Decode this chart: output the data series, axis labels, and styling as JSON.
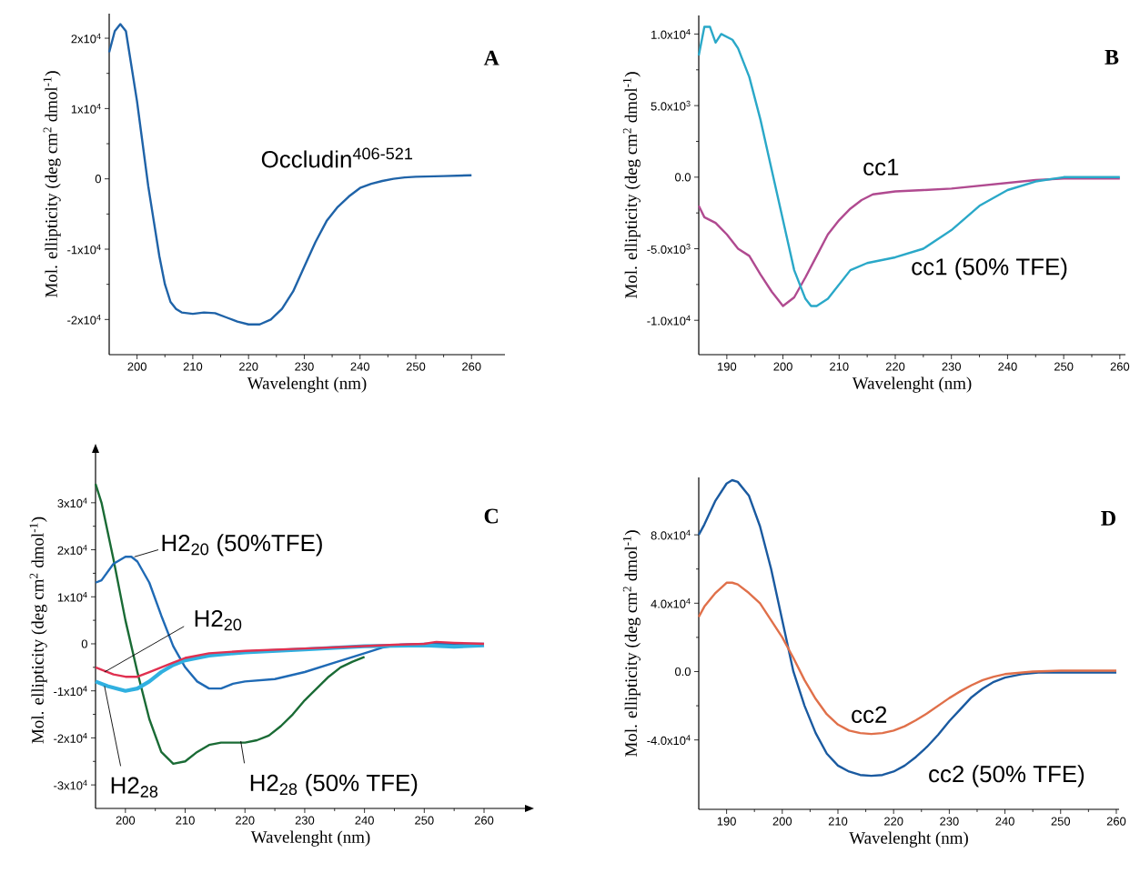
{
  "chart_data": [
    {
      "type": "line",
      "xlabel": "Wavelenght (nm)",
      "ylabel": "Mol. ellipticity (deg cm$^{2}$ dmol$^{-1}$)",
      "annotations": [
        "A"
      ],
      "xlim": [
        195,
        266
      ],
      "ylim": [
        -25000,
        23500
      ],
      "xticks": [
        200,
        210,
        220,
        230,
        240,
        250,
        260
      ],
      "yticks": [
        {
          "value": -20000,
          "label": "-2x10$^{4}$"
        },
        {
          "value": -10000,
          "label": "-1x10$^{4}$"
        },
        0,
        {
          "value": 10000,
          "label": "1x10$^{4}$"
        },
        {
          "value": 20000,
          "label": "2x10$^{4}$"
        }
      ],
      "series": [
        {
          "name": "Occludin$^{406-521}$",
          "color": "#1f63a8",
          "x": [
            195,
            196,
            197,
            198,
            199,
            200,
            201,
            202,
            203,
            204,
            205,
            206,
            207,
            208,
            210,
            212,
            214,
            216,
            218,
            220,
            222,
            224,
            226,
            228,
            230,
            232,
            234,
            236,
            238,
            240,
            242,
            244,
            246,
            248,
            250,
            255,
            260
          ],
          "values": [
            18000,
            21000,
            22000,
            21000,
            16000,
            11000,
            5000,
            -1000,
            -6000,
            -11000,
            -15000,
            -17500,
            -18500,
            -19000,
            -19200,
            -19000,
            -19100,
            -19700,
            -20300,
            -20700,
            -20700,
            -20000,
            -18500,
            -16000,
            -12500,
            -9000,
            -6000,
            -4000,
            -2500,
            -1300,
            -700,
            -300,
            0,
            200,
            300,
            400,
            500
          ]
        }
      ]
    },
    {
      "type": "line",
      "xlabel": "Wavelenght (nm)",
      "ylabel": "Mol. ellipticity (deg cm$^{2}$ dmol$^{-1}$)",
      "annotations": [
        "B"
      ],
      "xlim": [
        185,
        261
      ],
      "ylim": [
        -12400,
        11300
      ],
      "xticks": [
        190,
        200,
        210,
        220,
        230,
        240,
        250,
        260
      ],
      "yticks": [
        {
          "value": -10000,
          "label": "-1.0x10$^{4}$"
        },
        {
          "value": -5000,
          "label": "-5.0x10$^{3}$"
        },
        {
          "value": 0,
          "label": "0.0"
        },
        {
          "value": 5000,
          "label": "5.0x10$^{3}$"
        },
        {
          "value": 10000,
          "label": "1.0x10$^{4}$"
        }
      ],
      "series": [
        {
          "name": "cc1",
          "color": "#b04a90",
          "x": [
            185,
            186,
            188,
            190,
            192,
            194,
            196,
            198,
            200,
            202,
            204,
            206,
            208,
            210,
            212,
            214,
            216,
            220,
            225,
            230,
            235,
            240,
            245,
            250,
            255,
            260
          ],
          "values": [
            -2000,
            -2800,
            -3200,
            -4000,
            -5000,
            -5500,
            -6800,
            -8000,
            -9000,
            -8400,
            -7000,
            -5500,
            -4000,
            -3000,
            -2200,
            -1600,
            -1200,
            -1000,
            -900,
            -800,
            -600,
            -400,
            -200,
            -100,
            -100,
            -100
          ]
        },
        {
          "name": "cc1 (50% TFE)",
          "color": "#2aa8c8",
          "x": [
            185,
            186,
            187,
            188,
            189,
            190,
            191,
            192,
            194,
            196,
            198,
            200,
            202,
            204,
            205,
            206,
            208,
            210,
            212,
            215,
            220,
            225,
            230,
            235,
            240,
            245,
            250,
            255,
            260
          ],
          "values": [
            8500,
            10500,
            10500,
            9400,
            10000,
            9800,
            9600,
            9000,
            7000,
            4000,
            500,
            -3000,
            -6500,
            -8500,
            -9000,
            -9000,
            -8500,
            -7500,
            -6500,
            -6000,
            -5600,
            -5000,
            -3700,
            -2000,
            -900,
            -300,
            0,
            0,
            0
          ]
        }
      ]
    },
    {
      "type": "line",
      "xlabel": "Wavelenght (nm)",
      "ylabel": "Mol. ellipticity (deg cm$^{2}$ dmol$^{-1}$)",
      "annotations": [
        "C"
      ],
      "xlim": [
        195,
        267
      ],
      "ylim": [
        -35000,
        40800
      ],
      "xticks": [
        200,
        210,
        220,
        230,
        240,
        250,
        260
      ],
      "yticks": [
        {
          "value": -30000,
          "label": "-3x10$^{4}$"
        },
        {
          "value": -20000,
          "label": "-2x10$^{4}$"
        },
        {
          "value": -10000,
          "label": "-1x10$^{4}$"
        },
        0,
        {
          "value": 10000,
          "label": "1x10$^{4}$"
        },
        {
          "value": 20000,
          "label": "2x10$^{4}$"
        },
        {
          "value": 30000,
          "label": "3x10$^{4}$"
        }
      ],
      "series": [
        {
          "name": "H2$_{28}$ (50% TFE)",
          "color": "#1a6b35",
          "x": [
            195,
            196,
            198,
            200,
            202,
            204,
            206,
            208,
            210,
            212,
            214,
            216,
            220,
            222,
            224,
            226,
            228,
            230,
            232,
            234,
            236,
            238,
            240
          ],
          "values": [
            34000,
            30000,
            18000,
            5000,
            -6000,
            -16000,
            -23000,
            -25500,
            -25000,
            -23000,
            -21500,
            -21000,
            -21000,
            -20500,
            -19500,
            -17500,
            -15000,
            -12000,
            -9500,
            -7000,
            -5000,
            -3800,
            -2800
          ]
        },
        {
          "name": "H2$_{20}$ (50%TFE)",
          "color": "#1f6ab5",
          "x": [
            195,
            196,
            198,
            200,
            201,
            202,
            204,
            206,
            208,
            210,
            212,
            214,
            216,
            218,
            220,
            225,
            230,
            235,
            240,
            243,
            246,
            250,
            255,
            260
          ],
          "values": [
            13000,
            13500,
            17000,
            18500,
            18500,
            17500,
            13000,
            6000,
            -500,
            -5000,
            -8000,
            -9500,
            -9500,
            -8500,
            -8000,
            -7500,
            -6000,
            -4000,
            -2000,
            -800,
            -200,
            0,
            0,
            0
          ]
        },
        {
          "name": "H2$_{28}$",
          "color": "#30b0e0",
          "x": [
            195,
            197,
            200,
            202,
            204,
            206,
            208,
            210,
            214,
            220,
            230,
            240,
            250,
            255,
            260
          ],
          "values": [
            -8000,
            -9000,
            -10000,
            -9500,
            -8000,
            -6000,
            -4500,
            -3500,
            -2500,
            -1800,
            -1200,
            -500,
            -300,
            -600,
            -300
          ]
        },
        {
          "name": "H2$_{20}$",
          "color": "#e03050",
          "x": [
            195,
            198,
            200,
            202,
            204,
            206,
            208,
            210,
            214,
            220,
            230,
            240,
            245,
            250,
            252,
            255,
            260
          ],
          "values": [
            -5000,
            -6500,
            -7000,
            -7000,
            -6000,
            -5000,
            -4000,
            -3000,
            -2000,
            -1500,
            -1000,
            -500,
            -200,
            0,
            400,
            200,
            0
          ]
        }
      ]
    },
    {
      "type": "line",
      "xlabel": "Wavelenght (nm)",
      "ylabel": "Mol. ellipticity (deg cm$^{2}$ dmol$^{-1}$)",
      "annotations": [
        "D"
      ],
      "xlim": [
        185,
        260.5
      ],
      "ylim": [
        -80600,
        113600
      ],
      "xticks": [
        190,
        200,
        210,
        220,
        230,
        240,
        250,
        260
      ],
      "yticks": [
        {
          "value": -40000,
          "label": "-4.0x10$^{4}$"
        },
        {
          "value": 0,
          "label": "0.0"
        },
        {
          "value": 40000,
          "label": "4.0x10$^{4}$"
        },
        {
          "value": 80000,
          "label": "8.0x10$^{4}$"
        }
      ],
      "series": [
        {
          "name": "cc2 (50% TFE)",
          "color": "#1a5aa0",
          "x": [
            185,
            186,
            188,
            190,
            191,
            192,
            194,
            196,
            198,
            200,
            202,
            204,
            206,
            208,
            210,
            212,
            214,
            216,
            218,
            220,
            222,
            224,
            226,
            228,
            230,
            232,
            234,
            236,
            238,
            240,
            243,
            246,
            250,
            255,
            260
          ],
          "values": [
            80000,
            86000,
            100000,
            110000,
            112000,
            111000,
            103000,
            85000,
            60000,
            30000,
            0,
            -20000,
            -36000,
            -48000,
            -55000,
            -58500,
            -60500,
            -61000,
            -60500,
            -58500,
            -55000,
            -50000,
            -44000,
            -37000,
            -29000,
            -22000,
            -15000,
            -10000,
            -6000,
            -3500,
            -1500,
            -500,
            -500,
            -500,
            -500
          ]
        },
        {
          "name": "cc2",
          "color": "#e0704a",
          "x": [
            185,
            186,
            188,
            190,
            191,
            192,
            194,
            196,
            198,
            200,
            202,
            204,
            206,
            208,
            210,
            212,
            214,
            216,
            218,
            220,
            222,
            224,
            226,
            228,
            230,
            232,
            234,
            236,
            238,
            240,
            245,
            250,
            260
          ],
          "values": [
            32000,
            38000,
            46000,
            52000,
            52000,
            51000,
            46000,
            40000,
            30000,
            20000,
            8000,
            -5000,
            -16000,
            -25000,
            -31000,
            -34500,
            -36000,
            -36500,
            -36000,
            -34500,
            -32000,
            -28500,
            -24500,
            -20000,
            -15500,
            -11500,
            -8000,
            -5000,
            -3000,
            -1500,
            0,
            500,
            500
          ]
        }
      ]
    }
  ]
}
